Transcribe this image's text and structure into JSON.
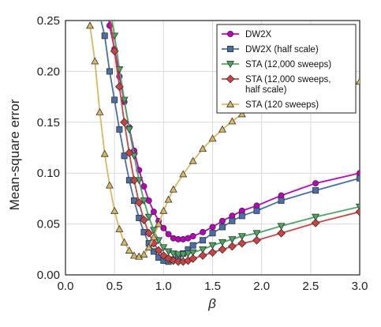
{
  "chart_data": {
    "type": "line",
    "xlabel": "β",
    "ylabel": "Mean-square error",
    "xlim": [
      0.0,
      3.0
    ],
    "ylim": [
      0.0,
      0.25
    ],
    "xticks": [
      "0.0",
      "0.5",
      "1.0",
      "1.5",
      "2.0",
      "2.5",
      "3.0"
    ],
    "yticks": [
      "0.00",
      "0.05",
      "0.10",
      "0.15",
      "0.20",
      "0.25"
    ],
    "grid": true,
    "legend_position": "top-right",
    "series": [
      {
        "name": "DW2X",
        "color": "#c000c0",
        "marker": "circle",
        "points": [
          [
            0.4,
            0.285
          ],
          [
            0.45,
            0.245
          ],
          [
            0.5,
            0.222
          ],
          [
            0.55,
            0.195
          ],
          [
            0.6,
            0.17
          ],
          [
            0.65,
            0.145
          ],
          [
            0.7,
            0.122
          ],
          [
            0.75,
            0.103
          ],
          [
            0.8,
            0.087
          ],
          [
            0.85,
            0.073
          ],
          [
            0.9,
            0.062
          ],
          [
            0.95,
            0.053
          ],
          [
            1.0,
            0.046
          ],
          [
            1.05,
            0.04
          ],
          [
            1.1,
            0.036
          ],
          [
            1.15,
            0.035
          ],
          [
            1.2,
            0.035
          ],
          [
            1.25,
            0.036
          ],
          [
            1.3,
            0.038
          ],
          [
            1.4,
            0.042
          ],
          [
            1.5,
            0.047
          ],
          [
            1.6,
            0.053
          ],
          [
            1.7,
            0.058
          ],
          [
            1.8,
            0.063
          ],
          [
            1.95,
            0.068
          ],
          [
            2.2,
            0.078
          ],
          [
            2.55,
            0.09
          ],
          [
            3.0,
            0.1
          ]
        ]
      },
      {
        "name": "DW2X (half scale)",
        "color": "#4a6fa8",
        "marker": "square",
        "points": [
          [
            0.35,
            0.255
          ],
          [
            0.4,
            0.235
          ],
          [
            0.45,
            0.2
          ],
          [
            0.5,
            0.172
          ],
          [
            0.55,
            0.143
          ],
          [
            0.6,
            0.117
          ],
          [
            0.65,
            0.093
          ],
          [
            0.7,
            0.073
          ],
          [
            0.75,
            0.056
          ],
          [
            0.8,
            0.042
          ],
          [
            0.85,
            0.031
          ],
          [
            0.9,
            0.023
          ],
          [
            0.95,
            0.017
          ],
          [
            1.0,
            0.014
          ],
          [
            1.05,
            0.013
          ],
          [
            1.1,
            0.015
          ],
          [
            1.15,
            0.018
          ],
          [
            1.2,
            0.021
          ],
          [
            1.25,
            0.025
          ],
          [
            1.3,
            0.029
          ],
          [
            1.4,
            0.034
          ],
          [
            1.5,
            0.041
          ],
          [
            1.6,
            0.047
          ],
          [
            1.7,
            0.053
          ],
          [
            1.8,
            0.058
          ],
          [
            1.95,
            0.063
          ],
          [
            2.2,
            0.073
          ],
          [
            2.55,
            0.083
          ],
          [
            3.0,
            0.095
          ]
        ]
      },
      {
        "name": "STA (12,000 sweeps)",
        "color": "#48a860",
        "marker": "triangle-down",
        "points": [
          [
            0.45,
            0.265
          ],
          [
            0.5,
            0.235
          ],
          [
            0.55,
            0.202
          ],
          [
            0.6,
            0.172
          ],
          [
            0.65,
            0.143
          ],
          [
            0.7,
            0.117
          ],
          [
            0.75,
            0.093
          ],
          [
            0.8,
            0.073
          ],
          [
            0.85,
            0.057
          ],
          [
            0.9,
            0.044
          ],
          [
            0.95,
            0.034
          ],
          [
            1.0,
            0.027
          ],
          [
            1.05,
            0.023
          ],
          [
            1.1,
            0.021
          ],
          [
            1.15,
            0.02
          ],
          [
            1.2,
            0.02
          ],
          [
            1.25,
            0.021
          ],
          [
            1.3,
            0.022
          ],
          [
            1.4,
            0.025
          ],
          [
            1.5,
            0.029
          ],
          [
            1.6,
            0.032
          ],
          [
            1.7,
            0.035
          ],
          [
            1.8,
            0.038
          ],
          [
            1.95,
            0.041
          ],
          [
            2.2,
            0.048
          ],
          [
            2.55,
            0.057
          ],
          [
            3.0,
            0.067
          ]
        ]
      },
      {
        "name": "STA (12,000 sweeps, half scale)",
        "color": "#d04040",
        "marker": "diamond",
        "points": [
          [
            0.45,
            0.255
          ],
          [
            0.5,
            0.22
          ],
          [
            0.55,
            0.185
          ],
          [
            0.6,
            0.15
          ],
          [
            0.65,
            0.12
          ],
          [
            0.7,
            0.093
          ],
          [
            0.75,
            0.071
          ],
          [
            0.8,
            0.054
          ],
          [
            0.85,
            0.041
          ],
          [
            0.9,
            0.031
          ],
          [
            0.95,
            0.024
          ],
          [
            1.0,
            0.019
          ],
          [
            1.05,
            0.016
          ],
          [
            1.1,
            0.014
          ],
          [
            1.15,
            0.013
          ],
          [
            1.2,
            0.013
          ],
          [
            1.25,
            0.014
          ],
          [
            1.3,
            0.016
          ],
          [
            1.4,
            0.019
          ],
          [
            1.5,
            0.022
          ],
          [
            1.6,
            0.025
          ],
          [
            1.7,
            0.028
          ],
          [
            1.8,
            0.031
          ],
          [
            1.95,
            0.034
          ],
          [
            2.2,
            0.041
          ],
          [
            2.55,
            0.051
          ],
          [
            3.0,
            0.062
          ]
        ]
      },
      {
        "name": "STA (120 sweeps)",
        "color": "#d8b860",
        "marker": "triangle-up",
        "points": [
          [
            0.25,
            0.245
          ],
          [
            0.3,
            0.21
          ],
          [
            0.35,
            0.16
          ],
          [
            0.4,
            0.119
          ],
          [
            0.45,
            0.088
          ],
          [
            0.5,
            0.063
          ],
          [
            0.55,
            0.045
          ],
          [
            0.6,
            0.032
          ],
          [
            0.65,
            0.024
          ],
          [
            0.7,
            0.019
          ],
          [
            0.75,
            0.018
          ],
          [
            0.8,
            0.02
          ],
          [
            0.85,
            0.027
          ],
          [
            0.9,
            0.037
          ],
          [
            0.95,
            0.05
          ],
          [
            1.0,
            0.063
          ],
          [
            1.05,
            0.074
          ],
          [
            1.1,
            0.084
          ],
          [
            1.2,
            0.099
          ],
          [
            1.3,
            0.112
          ],
          [
            1.4,
            0.124
          ],
          [
            1.5,
            0.134
          ],
          [
            1.6,
            0.143
          ],
          [
            1.7,
            0.151
          ],
          [
            1.8,
            0.158
          ],
          [
            1.95,
            0.166
          ],
          [
            2.2,
            0.176
          ],
          [
            2.55,
            0.184
          ],
          [
            3.0,
            0.19
          ]
        ]
      }
    ],
    "legend": [
      {
        "lines": [
          "DW2X"
        ]
      },
      {
        "lines": [
          "DW2X (half scale)"
        ]
      },
      {
        "lines": [
          "STA (12,000 sweeps)"
        ]
      },
      {
        "lines": [
          "STA (12,000 sweeps,",
          "half scale)"
        ]
      },
      {
        "lines": [
          "STA (120 sweeps)"
        ]
      }
    ]
  }
}
